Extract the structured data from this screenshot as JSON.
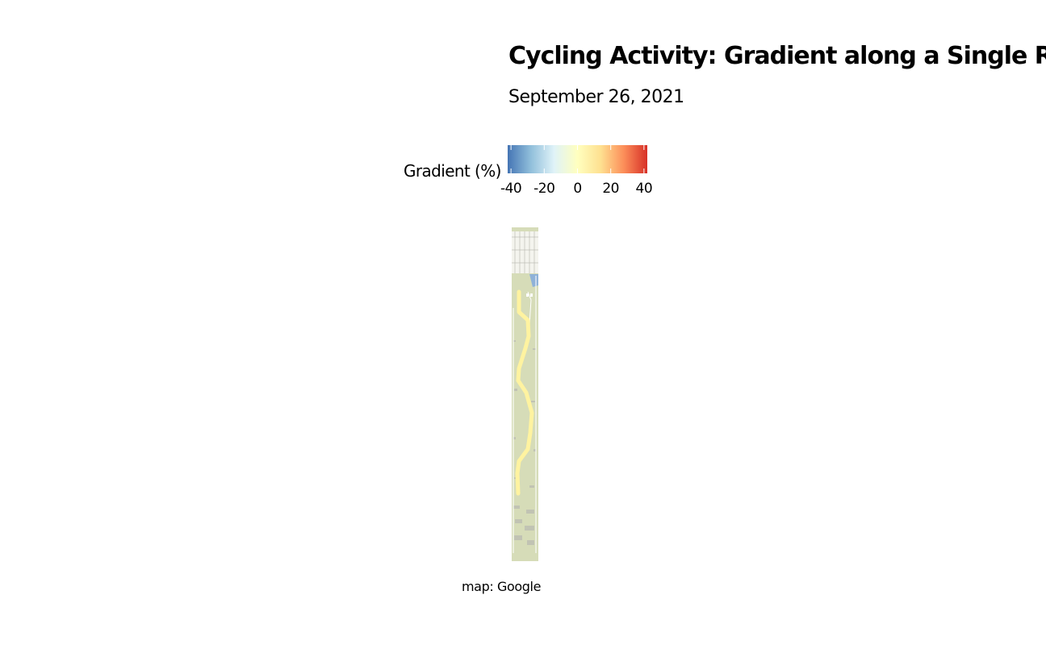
{
  "header": {
    "title": "Cycling Activity: Gradient along a Single Rou",
    "subtitle": "September 26, 2021"
  },
  "legend": {
    "title": "Gradient (%)",
    "min": -42,
    "max": 42,
    "ticks": [
      {
        "value": -40,
        "label": "-40"
      },
      {
        "value": -20,
        "label": "-20"
      },
      {
        "value": 0,
        "label": "0"
      },
      {
        "value": 20,
        "label": "20"
      },
      {
        "value": 40,
        "label": "40"
      }
    ],
    "colors": [
      "#4575b4",
      "#91bfdb",
      "#e0f3f8",
      "#ffffbf",
      "#fee090",
      "#fc8d59",
      "#d73027"
    ]
  },
  "map": {
    "route_color": "#fff3a0",
    "land_color": "#d6dcb8",
    "water_color": "#8fb2d8",
    "road_color": "#ffffff"
  },
  "caption": "map: Google"
}
